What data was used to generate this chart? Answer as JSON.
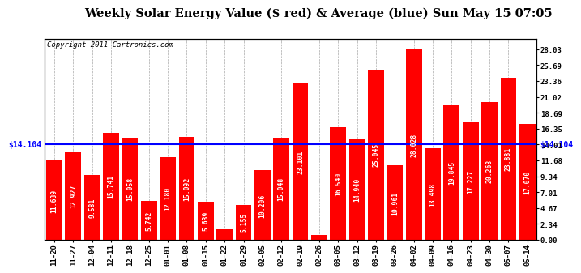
{
  "title": "Weekly Solar Energy Value ($ red) & Average (blue) Sun May 15 07:05",
  "copyright": "Copyright 2011 Cartronics.com",
  "average_value": 14.104,
  "average_label_left": "$14.104",
  "average_label_right": "$14.104",
  "categories": [
    "11-20",
    "11-27",
    "12-04",
    "12-11",
    "12-18",
    "12-25",
    "01-01",
    "01-08",
    "01-15",
    "01-22",
    "01-29",
    "02-05",
    "02-12",
    "02-19",
    "02-26",
    "03-05",
    "03-12",
    "03-19",
    "03-26",
    "04-02",
    "04-09",
    "04-16",
    "04-23",
    "04-30",
    "05-07",
    "05-14"
  ],
  "values": [
    11.639,
    12.927,
    9.581,
    15.741,
    15.058,
    5.742,
    12.18,
    15.092,
    5.639,
    1.577,
    5.155,
    10.206,
    15.048,
    23.101,
    0.707,
    16.54,
    14.94,
    25.045,
    10.961,
    28.028,
    13.498,
    19.845,
    17.227,
    20.268,
    23.881,
    17.07
  ],
  "bar_color": "#FF0000",
  "avg_line_color": "#0000FF",
  "background_color": "#FFFFFF",
  "plot_bg_color": "#FFFFFF",
  "grid_color": "#AAAAAA",
  "yticks_right": [
    0.0,
    2.34,
    4.67,
    7.01,
    9.34,
    11.68,
    14.01,
    16.35,
    18.69,
    21.02,
    23.36,
    25.69,
    28.03
  ],
  "ylim": [
    0,
    29.5
  ],
  "title_fontsize": 10.5,
  "copyright_fontsize": 6.5,
  "tick_fontsize": 6.5,
  "bar_label_fontsize": 5.8,
  "avg_fontsize": 7
}
